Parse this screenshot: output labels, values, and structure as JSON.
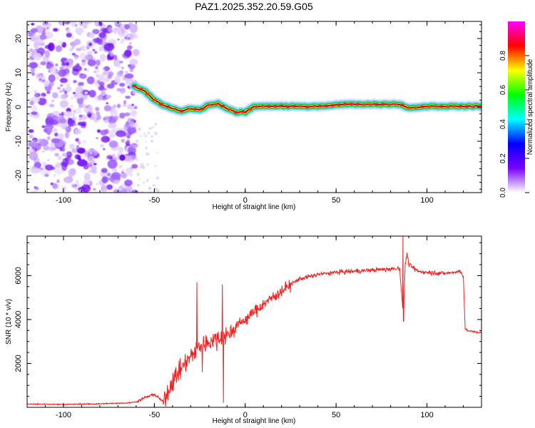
{
  "title": "PAZ1.2025.352.20.59.G05",
  "chart_data": [
    {
      "type": "heatmap",
      "name": "spectrogram",
      "xlabel": "Height of straight line (km)",
      "ylabel": "Frequency (Hz)",
      "xlim": [
        -120,
        130
      ],
      "ylim": [
        -25,
        25
      ],
      "xticks": [
        -100,
        -50,
        0,
        50,
        100
      ],
      "yticks": [
        -20,
        -10,
        0,
        10,
        20
      ],
      "colorbar": {
        "label": "Normalized spectral amplitude",
        "range": [
          0,
          1
        ],
        "ticks": [
          "0.0",
          "0.2",
          "0.4",
          "0.6",
          "0.8"
        ],
        "colors": [
          "#ffffff",
          "#7a00ff",
          "#0000ff",
          "#00ffff",
          "#00ff00",
          "#ffff00",
          "#ff0000",
          "#ff00ff"
        ]
      },
      "noise_region": {
        "x": [
          -118,
          -60
        ],
        "freq": [
          -25,
          25
        ],
        "amplitude": "low (0.05-0.25)"
      },
      "ridge": {
        "x": [
          -61,
          -55,
          -50,
          -45,
          -40,
          -35,
          -30,
          -25,
          -20,
          -15,
          -10,
          -5,
          0,
          5,
          20,
          40,
          55,
          70,
          85,
          90,
          100,
          115,
          130
        ],
        "freq": [
          6.0,
          4.5,
          2.0,
          0.5,
          -0.5,
          -1.2,
          -0.5,
          -0.8,
          0.5,
          1.0,
          -0.5,
          -1.5,
          -1.5,
          0.2,
          0.2,
          0.2,
          0.8,
          0.8,
          0.8,
          -0.3,
          0.2,
          0.2,
          0.2
        ]
      }
    },
    {
      "type": "line",
      "name": "snr",
      "xlabel": "Height of straight line (km)",
      "ylabel": "SNR (10 * v/v)",
      "xlim": [
        -120,
        130
      ],
      "ylim": [
        0,
        7800
      ],
      "xticks": [
        -100,
        -50,
        0,
        50,
        100
      ],
      "yticks": [
        2000,
        4000,
        6000
      ],
      "color": "#ee2222",
      "series": [
        {
          "name": "SNR",
          "x": [
            -120,
            -100,
            -80,
            -65,
            -60,
            -55,
            -50,
            -48,
            -45,
            -40,
            -35,
            -30,
            -25,
            -20,
            -15,
            -10,
            -5,
            0,
            10,
            20,
            25,
            30,
            40,
            50,
            60,
            70,
            80,
            85,
            87,
            88,
            89,
            90,
            95,
            100,
            110,
            118,
            120,
            121,
            122,
            125,
            130
          ],
          "y": [
            150,
            130,
            160,
            200,
            250,
            450,
            600,
            450,
            250,
            1200,
            1800,
            2300,
            2800,
            3000,
            3100,
            3300,
            3700,
            4000,
            4700,
            5300,
            5600,
            5850,
            6050,
            6150,
            6200,
            6250,
            6300,
            6350,
            4000,
            6500,
            7000,
            6500,
            6200,
            6150,
            6100,
            6200,
            6000,
            3600,
            3500,
            3450,
            3400
          ]
        }
      ],
      "spikes": [
        {
          "x": -26.5,
          "y": 5700
        },
        {
          "x": -23.5,
          "y": 1600
        },
        {
          "x": -12.5,
          "y": 5600
        },
        {
          "x": -12.0,
          "y": 200
        },
        {
          "x": 86.8,
          "y": 7850
        },
        {
          "x": 87.3,
          "y": 3900
        }
      ]
    }
  ]
}
